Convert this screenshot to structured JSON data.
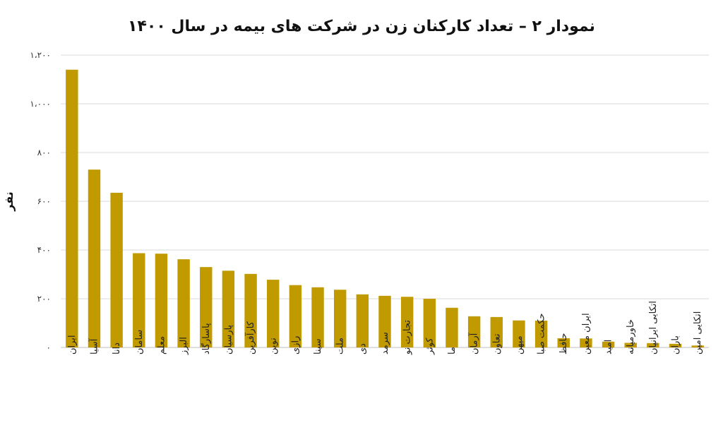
{
  "chart_data": {
    "type": "bar",
    "title": "نمودار ۲ – تعداد کارکنان زن در شرکت های بیمه در سال ۱۴۰۰",
    "xlabel": "",
    "ylabel": "نفر",
    "ylim": [
      0,
      1200
    ],
    "yticks": [
      0,
      200,
      400,
      600,
      800,
      1000,
      1200
    ],
    "ytick_labels": [
      "۰",
      "۲۰۰",
      "۴۰۰",
      "۶۰۰",
      "۸۰۰",
      "۱،۰۰۰",
      "۱،۲۰۰"
    ],
    "grid": true,
    "bar_color": "#C19A00",
    "categories": [
      "ایران",
      "آسیا",
      "دانا",
      "سامان",
      "معلم",
      "البرز",
      "پاسارگاد",
      "پارسیان",
      "کارآفرین",
      "نوین",
      "رازی",
      "سینا",
      "ملت",
      "دی",
      "سرمد",
      "تجارت نو",
      "کوثر",
      "ما",
      "آرمان",
      "تعاون",
      "میهن",
      "حکمت صبا",
      "حافظ",
      "ایران معین",
      "امید",
      "خاورمیانه",
      "اتکایی ایرانیان",
      "باران",
      "اتکایی امین"
    ],
    "values": [
      1140,
      730,
      635,
      387,
      385,
      362,
      330,
      315,
      302,
      278,
      256,
      247,
      237,
      218,
      212,
      208,
      200,
      163,
      128,
      125,
      111,
      110,
      38,
      37,
      24,
      19,
      18,
      15,
      8
    ]
  }
}
